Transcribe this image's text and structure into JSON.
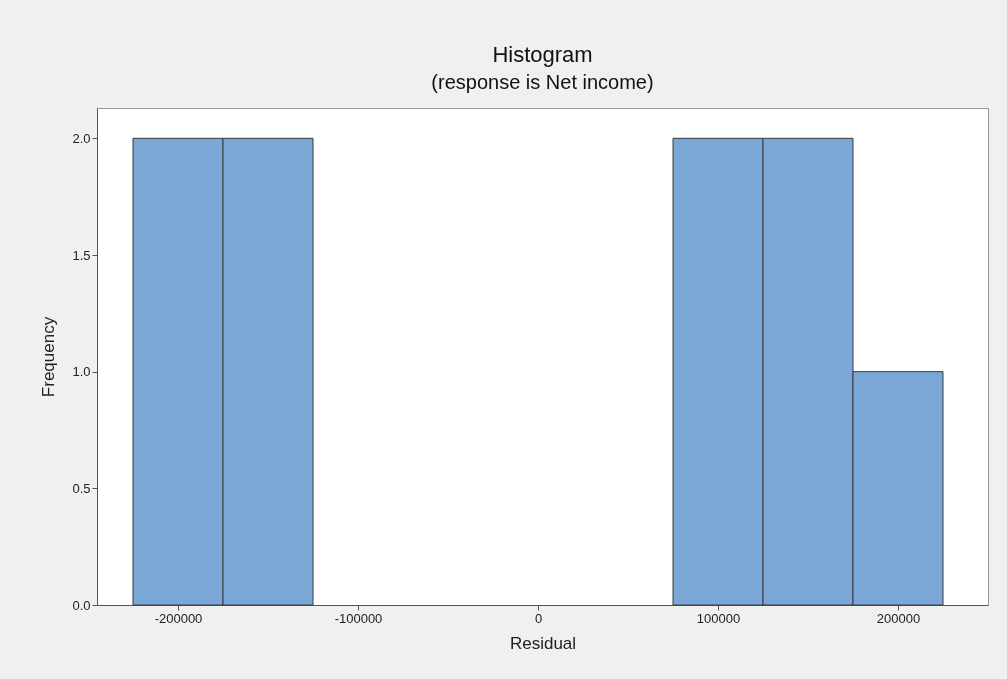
{
  "chart_data": {
    "type": "histogram",
    "title": "Histogram",
    "subtitle": "(response is Net income)",
    "xlabel": "Residual",
    "ylabel": "Frequency",
    "bins": [
      -225000,
      -175000,
      -125000,
      -75000,
      -25000,
      25000,
      75000,
      125000,
      175000,
      225000
    ],
    "values": [
      2,
      2,
      0,
      0,
      0,
      0,
      2,
      2,
      1
    ],
    "color": "#7ba7d6",
    "xlim": [
      -245000,
      250000
    ],
    "xticks": [
      -200000,
      -100000,
      0,
      100000,
      200000
    ],
    "ylim": [
      0,
      2.13
    ],
    "yticks": [
      {
        "value": 0,
        "label": "0.0"
      },
      {
        "value": 0.5,
        "label": "0.5"
      },
      {
        "value": 1,
        "label": "1.0"
      },
      {
        "value": 1.5,
        "label": "1.5"
      },
      {
        "value": 2,
        "label": "2.0"
      }
    ],
    "grid": false
  }
}
